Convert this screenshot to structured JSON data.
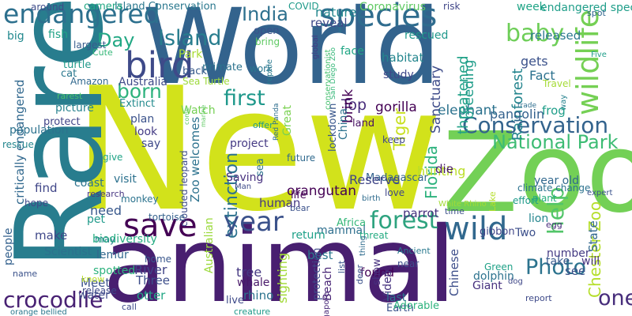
{
  "words": [
    {
      "text": "World",
      "color": "#33638d"
    },
    {
      "text": "New",
      "color": "#d2e21b"
    },
    {
      "text": "Rare",
      "color": "#287d8e"
    },
    {
      "text": "animal",
      "color": "#481f70"
    },
    {
      "text": "Zoo",
      "color": "#73d056"
    },
    {
      "text": "endangered",
      "color": "#2d708e"
    },
    {
      "text": "species",
      "color": "#2f6c8e"
    },
    {
      "text": "bird",
      "color": "#3e4a89"
    },
    {
      "text": "save",
      "color": "#440154"
    },
    {
      "text": "wildlife",
      "color": "#75d054"
    },
    {
      "text": "Conservation",
      "color": "#33638d"
    },
    {
      "text": "wild",
      "color": "#31688e"
    },
    {
      "text": "forest",
      "color": "#2ea37f"
    },
    {
      "text": "extinction",
      "color": "#2c728e"
    },
    {
      "text": "year",
      "color": "#3b528b"
    },
    {
      "text": "crocodile",
      "color": "#482173"
    },
    {
      "text": "Photo",
      "color": "#2c738e"
    },
    {
      "text": "first",
      "color": "#1f988b"
    },
    {
      "text": "born",
      "color": "#2db27d"
    },
    {
      "text": "Island",
      "color": "#287d8e"
    },
    {
      "text": "India",
      "color": "#2d708e"
    },
    {
      "text": "Day",
      "color": "#22a884"
    },
    {
      "text": "baby",
      "color": "#6ece58"
    },
    {
      "text": "National Park",
      "color": "#3dbc74"
    },
    {
      "text": "help",
      "color": "#52c569"
    },
    {
      "text": "one",
      "color": "#472d7b"
    },
    {
      "text": "Chester Zoo",
      "color": "#b5de2b"
    },
    {
      "text": "Rainforest",
      "color": "#25858e"
    },
    {
      "text": "pangolin",
      "color": "#34618d"
    },
    {
      "text": "elephant",
      "color": "#2c728e"
    },
    {
      "text": "Tiger",
      "color": "#c8e020"
    },
    {
      "text": "gorilla",
      "color": "#440154"
    },
    {
      "text": "Top",
      "color": "#472c7a"
    },
    {
      "text": "Sanctuary",
      "color": "#3e4c8a"
    },
    {
      "text": "threatened",
      "color": "#1fa187"
    },
    {
      "text": "breeding",
      "color": "#1e9c89"
    },
    {
      "text": "rescued",
      "color": "#1f988b"
    },
    {
      "text": "habitat",
      "color": "#24868e"
    },
    {
      "text": "released",
      "color": "#2a788e"
    },
    {
      "text": "gets",
      "color": "#3b528b"
    },
    {
      "text": "Fact",
      "color": "#2c718e"
    },
    {
      "text": "Travel",
      "color": "#a5db36"
    },
    {
      "text": "week",
      "color": "#20a486"
    },
    {
      "text": "endangered species",
      "color": "#1f9e89"
    },
    {
      "text": "nature",
      "color": "#24878e"
    },
    {
      "text": "reveal",
      "color": "#3e4989"
    },
    {
      "text": "face",
      "color": "#21a685"
    },
    {
      "text": "Coronavirus",
      "color": "#5ec962"
    },
    {
      "text": "risk",
      "color": "#404688"
    },
    {
      "text": "spot",
      "color": "#31668e"
    },
    {
      "text": "Five",
      "color": "#1f9e89"
    },
    {
      "text": "COVID",
      "color": "#1f9a8a"
    },
    {
      "text": "Island Conservation",
      "color": "#2a788e"
    },
    {
      "text": "camera",
      "color": "#22a884"
    },
    {
      "text": "around",
      "color": "#3e4c8a"
    },
    {
      "text": "big",
      "color": "#23898e"
    },
    {
      "text": "fish",
      "color": "#20a386"
    },
    {
      "text": "largest",
      "color": "#375b8d"
    },
    {
      "text": "Cute",
      "color": "#35b779"
    },
    {
      "text": "primate",
      "color": "#2c738e"
    },
    {
      "text": "work",
      "color": "#2a768e"
    },
    {
      "text": "bring",
      "color": "#5ec962"
    },
    {
      "text": "open",
      "color": "#3b528b"
    },
    {
      "text": "turtle",
      "color": "#1f9a8a"
    },
    {
      "text": "cat",
      "color": "#2a788e"
    },
    {
      "text": "Amazon",
      "color": "#31688e"
    },
    {
      "text": "rarest",
      "color": "#4ac16d"
    },
    {
      "text": "Park",
      "color": "#a8db34"
    },
    {
      "text": "back",
      "color": "#375a8c"
    },
    {
      "text": "Sea Turtle",
      "color": "#9dd93b"
    },
    {
      "text": "Australia",
      "color": "#3e4a89"
    },
    {
      "text": "study",
      "color": "#3f4889"
    },
    {
      "text": "brink",
      "color": "#440154"
    },
    {
      "text": "lockdown",
      "color": "#39568c"
    },
    {
      "text": "land",
      "color": "#471063"
    },
    {
      "text": "China",
      "color": "#2c728e"
    },
    {
      "text": "Great",
      "color": "#7ad151"
    },
    {
      "text": "keep",
      "color": "#3f4788"
    },
    {
      "text": "plan",
      "color": "#3b528b"
    },
    {
      "text": "Extinct",
      "color": "#238a8d"
    },
    {
      "text": "Watch",
      "color": "#75d054"
    },
    {
      "text": "look",
      "color": "#443b84"
    },
    {
      "text": "say",
      "color": "#3e4989"
    },
    {
      "text": "picture",
      "color": "#26828e"
    },
    {
      "text": "protect",
      "color": "#414487"
    },
    {
      "text": "critically endangered",
      "color": "#31688e"
    },
    {
      "text": "population",
      "color": "#2c728e"
    },
    {
      "text": "rescue",
      "color": "#24868e"
    },
    {
      "text": "give",
      "color": "#20a486"
    },
    {
      "text": "Zoo welcomes",
      "color": "#2c728e"
    },
    {
      "text": "project",
      "color": "#443983"
    },
    {
      "text": "clouded leopard",
      "color": "#3e4c8a"
    },
    {
      "text": "Saving",
      "color": "#46307e"
    },
    {
      "text": "Man",
      "color": "#3e4a89"
    },
    {
      "text": "life",
      "color": "#440154"
    },
    {
      "text": "future",
      "color": "#306a8e"
    },
    {
      "text": "bear",
      "color": "#3b528b"
    },
    {
      "text": "Red Panda",
      "color": "#2e6e8e"
    },
    {
      "text": "reptile",
      "color": "#29798e"
    },
    {
      "text": "global",
      "color": "#443983"
    },
    {
      "text": "San Diego Zoo",
      "color": "#35b779"
    },
    {
      "text": "conservationist",
      "color": "#46c06f"
    },
    {
      "text": "Florida",
      "color": "#2db27d"
    },
    {
      "text": "Madagascar",
      "color": "#33638d"
    },
    {
      "text": "love",
      "color": "#3f4788"
    },
    {
      "text": "birth",
      "color": "#2f6c8e"
    },
    {
      "text": "Africa",
      "color": "#35b779"
    },
    {
      "text": "orangutan",
      "color": "#440154"
    },
    {
      "text": "human",
      "color": "#453882"
    },
    {
      "text": "Reserve",
      "color": "#404688"
    },
    {
      "text": "parrot",
      "color": "#46327e"
    },
    {
      "text": "mammal",
      "color": "#2e6f8e"
    },
    {
      "text": "return",
      "color": "#1fa188"
    },
    {
      "text": "best",
      "color": "#2a788e"
    },
    {
      "text": "threat",
      "color": "#25ab82"
    },
    {
      "text": "thing",
      "color": "#2f6c8e"
    },
    {
      "text": "White Rhino",
      "color": "#a2da37"
    },
    {
      "text": "Two",
      "color": "#3c508b"
    },
    {
      "text": "gibbon",
      "color": "#404588"
    },
    {
      "text": "lion",
      "color": "#24868e"
    },
    {
      "text": "egg",
      "color": "#472a7a"
    },
    {
      "text": "State",
      "color": "#31688e"
    },
    {
      "text": "hunting",
      "color": "#bade28"
    },
    {
      "text": "die",
      "color": "#481769"
    },
    {
      "text": "time",
      "color": "#3c4f8a"
    },
    {
      "text": "Lake",
      "color": "#b5de2b"
    },
    {
      "text": "climate change",
      "color": "#2c728e"
    },
    {
      "text": "effort",
      "color": "#1e9b8a"
    },
    {
      "text": "year old",
      "color": "#31688e"
    },
    {
      "text": "plant",
      "color": "#26ad81"
    },
    {
      "text": "expert",
      "color": "#3b528b"
    },
    {
      "text": "way",
      "color": "#26828e"
    },
    {
      "text": "trade",
      "color": "#2e6e8e"
    },
    {
      "text": "frog",
      "color": "#1f9e89"
    },
    {
      "text": "number",
      "color": "#443a83"
    },
    {
      "text": "take",
      "color": "#38588c"
    },
    {
      "text": "will",
      "color": "#46337f"
    },
    {
      "text": "see",
      "color": "#3b518b"
    },
    {
      "text": "make",
      "color": "#3f4889"
    },
    {
      "text": "Scientist",
      "color": "#2c718e"
    },
    {
      "text": "find",
      "color": "#404688"
    },
    {
      "text": "hope",
      "color": "#3f4788"
    },
    {
      "text": "coast",
      "color": "#2c738e"
    },
    {
      "text": "research",
      "color": "#453581"
    },
    {
      "text": "visit",
      "color": "#2c718e"
    },
    {
      "text": "need",
      "color": "#38588c"
    },
    {
      "text": "monkey",
      "color": "#2c738e"
    },
    {
      "text": "pet",
      "color": "#1f9a8a"
    },
    {
      "text": "may",
      "color": "#287c8e"
    },
    {
      "text": "tortoise",
      "color": "#34618d"
    },
    {
      "text": "Australian",
      "color": "#9bd93c"
    },
    {
      "text": "people",
      "color": "#34618d"
    },
    {
      "text": "biodiversity",
      "color": "#25ab82"
    },
    {
      "text": "lemur",
      "color": "#31688e"
    },
    {
      "text": "spotted",
      "color": "#2db27d"
    },
    {
      "text": "Meet",
      "color": "#3b528b"
    },
    {
      "text": "water",
      "color": "#3e4989"
    },
    {
      "text": "River",
      "color": "#414487"
    },
    {
      "text": "Three",
      "color": "#3d4e8a"
    },
    {
      "text": "home",
      "color": "#39568c"
    },
    {
      "text": "tree",
      "color": "#453882"
    },
    {
      "text": "whale",
      "color": "#481769"
    },
    {
      "text": "rhino",
      "color": "#2c738e"
    },
    {
      "text": "otter",
      "color": "#22a785"
    },
    {
      "text": "live",
      "color": "#3e4a89"
    },
    {
      "text": "creature",
      "color": "#1f9a8a"
    },
    {
      "text": "sighting",
      "color": "#a2da37"
    },
    {
      "text": "protection",
      "color": "#3e4a89"
    },
    {
      "text": "found",
      "color": "#440154"
    },
    {
      "text": "Beach",
      "color": "#482475"
    },
    {
      "text": "Video",
      "color": "#46337f"
    },
    {
      "text": "near",
      "color": "#3d4d8a"
    },
    {
      "text": "last",
      "color": "#2c718e"
    },
    {
      "text": "Earth",
      "color": "#3b528b"
    },
    {
      "text": "Ancient",
      "color": "#29798e"
    },
    {
      "text": "Adorable",
      "color": "#2db27d"
    },
    {
      "text": "show",
      "color": "#46307e"
    },
    {
      "text": "list",
      "color": "#39568c"
    },
    {
      "text": "deer",
      "color": "#3b528b"
    },
    {
      "text": "Chinese",
      "color": "#3d4e8a"
    },
    {
      "text": "Giant",
      "color": "#46307e"
    },
    {
      "text": "dolphin",
      "color": "#2c728e"
    },
    {
      "text": "Singapore",
      "color": "#482878"
    },
    {
      "text": "Green",
      "color": "#1fa187"
    },
    {
      "text": "dog",
      "color": "#3f4788"
    },
    {
      "text": "report",
      "color": "#3e4a89"
    },
    {
      "text": "name",
      "color": "#3b528b"
    },
    {
      "text": "know",
      "color": "#bade28"
    },
    {
      "text": "release",
      "color": "#3e4989"
    },
    {
      "text": "orange bellied",
      "color": "#2a788e"
    },
    {
      "text": "call",
      "color": "#3e4a89"
    },
    {
      "text": "marine",
      "color": "#5ec962"
    },
    {
      "text": "come",
      "color": "#5ec962"
    },
    {
      "text": "sea",
      "color": "#2c728e"
    },
    {
      "text": "offer",
      "color": "#1f9a8a"
    }
  ]
}
